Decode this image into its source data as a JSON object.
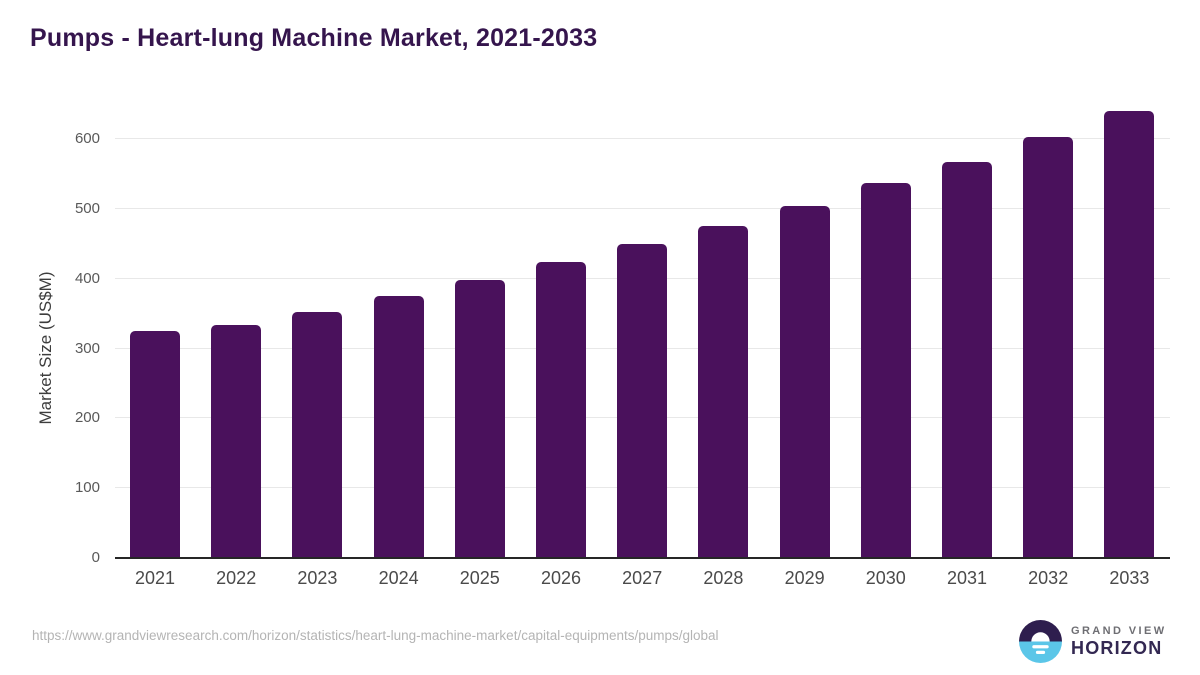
{
  "title": "Pumps - Heart-lung Machine Market, 2021-2033",
  "chart_data": {
    "type": "bar",
    "title": "Pumps - Heart-lung Machine Market, 2021-2033",
    "categories": [
      "2021",
      "2022",
      "2023",
      "2024",
      "2025",
      "2026",
      "2027",
      "2028",
      "2029",
      "2030",
      "2031",
      "2032",
      "2033"
    ],
    "values": [
      325,
      334,
      353,
      376,
      398,
      424,
      450,
      476,
      505,
      537,
      568,
      603,
      641
    ],
    "xlabel": "",
    "ylabel": "Market Size (US$M)",
    "ylim": [
      0,
      600
    ],
    "ytick_step": 100,
    "yticks": [
      0,
      100,
      200,
      300,
      400,
      500,
      600
    ],
    "grid": "horizontal",
    "legend": "none",
    "bar_color": "#4a115c"
  },
  "colors": {
    "title": "#35154d",
    "bar": "#4a115c",
    "gridline": "#e8e8e8",
    "axis_line": "#262626",
    "tick_label": "#4a4a4a",
    "source_text": "#b4b4b4",
    "logo_purple": "#2e1e4e",
    "logo_blue": "#5bc6e8",
    "logo_wordmark": "#332852"
  },
  "footer": {
    "source_url": "https://www.grandviewresearch.com/horizon/statistics/heart-lung-machine-market/capital-equipments/pumps/global",
    "logo": {
      "brand_top": "GRAND VIEW",
      "brand_bottom": "HORIZON",
      "icon": "horizon-sun-icon"
    }
  }
}
